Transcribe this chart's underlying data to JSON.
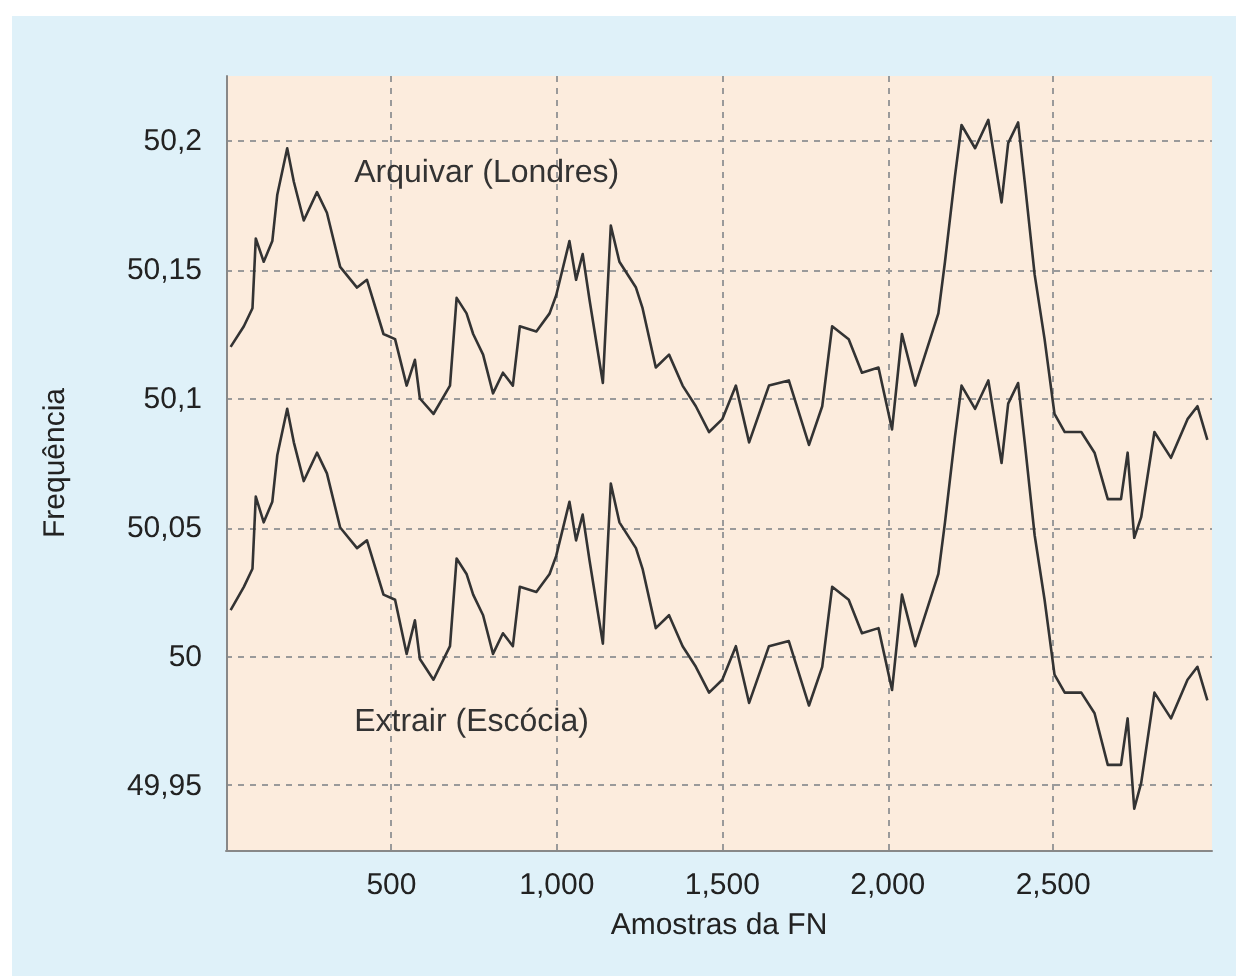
{
  "chart_data": {
    "type": "line",
    "xlabel": "Amostras da FN",
    "ylabel": "Frequência",
    "grid": true,
    "xlim": [
      0,
      2980
    ],
    "ylim": [
      49.925,
      50.225
    ],
    "xticks": [
      500,
      {
        "value": 1000,
        "label": "1,000"
      },
      {
        "value": 1500,
        "label": "1,500"
      },
      {
        "value": 2000,
        "label": "2,000"
      },
      {
        "value": 2500,
        "label": "2,500"
      }
    ],
    "yticks": [
      {
        "value": 49.95,
        "label": "49,95"
      },
      50,
      {
        "value": 50.05,
        "label": "50,05"
      },
      {
        "value": 50.1,
        "label": "50,1"
      },
      {
        "value": 50.15,
        "label": "50,15"
      },
      {
        "value": 50.2,
        "label": "50,2"
      }
    ],
    "x": [
      14,
      54,
      80,
      90,
      114,
      140,
      155,
      185,
      205,
      235,
      275,
      305,
      345,
      396,
      426,
      476,
      511,
      546,
      571,
      586,
      627,
      677,
      697,
      727,
      747,
      777,
      807,
      837,
      867,
      888,
      938,
      978,
      998,
      1038,
      1058,
      1078,
      1099,
      1139,
      1163,
      1189,
      1239,
      1259,
      1299,
      1339,
      1380,
      1420,
      1460,
      1500,
      1541,
      1581,
      1641,
      1701,
      1762,
      1802,
      1832,
      1882,
      1922,
      1972,
      2013,
      2043,
      2083,
      2113,
      2153,
      2173,
      2203,
      2223,
      2264,
      2304,
      2344,
      2364,
      2394,
      2414,
      2444,
      2474,
      2504,
      2535,
      2585,
      2625,
      2665,
      2705,
      2725,
      2745,
      2766,
      2806,
      2856,
      2906,
      2936,
      2966
    ],
    "series": [
      {
        "name": "Arquivar (Londres)",
        "color": "#333333",
        "values": [
          50.12,
          50.128,
          50.135,
          50.162,
          50.153,
          50.161,
          50.179,
          50.197,
          50.184,
          50.169,
          50.18,
          50.172,
          50.151,
          50.143,
          50.146,
          50.125,
          50.123,
          50.105,
          50.115,
          50.1,
          50.094,
          50.105,
          50.139,
          50.133,
          50.125,
          50.117,
          50.102,
          50.11,
          50.105,
          50.128,
          50.126,
          50.133,
          50.14,
          50.161,
          50.146,
          50.156,
          50.138,
          50.106,
          50.167,
          50.153,
          50.143,
          50.135,
          50.112,
          50.117,
          50.105,
          50.097,
          50.087,
          50.092,
          50.105,
          50.083,
          50.105,
          50.107,
          50.082,
          50.097,
          50.128,
          50.123,
          50.11,
          50.112,
          50.088,
          50.125,
          50.105,
          50.117,
          50.133,
          50.153,
          50.186,
          50.206,
          50.197,
          50.208,
          50.176,
          50.199,
          50.207,
          50.184,
          50.148,
          50.123,
          50.094,
          50.087,
          50.087,
          50.079,
          50.061,
          50.061,
          50.079,
          50.046,
          50.054,
          50.087,
          50.077,
          50.092,
          50.097,
          50.084
        ]
      },
      {
        "name": "Extrair (Escócia)",
        "color": "#333333",
        "values": [
          50.018,
          50.027,
          50.034,
          50.062,
          50.052,
          50.06,
          50.078,
          50.096,
          50.083,
          50.068,
          50.079,
          50.071,
          50.05,
          50.042,
          50.045,
          50.024,
          50.022,
          50.001,
          50.014,
          49.999,
          49.991,
          50.004,
          50.038,
          50.032,
          50.024,
          50.016,
          50.001,
          50.009,
          50.004,
          50.027,
          50.025,
          50.032,
          50.039,
          50.06,
          50.045,
          50.055,
          50.037,
          50.005,
          50.067,
          50.052,
          50.042,
          50.034,
          50.011,
          50.016,
          50.004,
          49.996,
          49.986,
          49.991,
          50.004,
          49.982,
          50.004,
          50.006,
          49.981,
          49.996,
          50.027,
          50.022,
          50.009,
          50.011,
          49.987,
          50.024,
          50.004,
          50.016,
          50.032,
          50.052,
          50.085,
          50.105,
          50.096,
          50.107,
          50.075,
          50.098,
          50.106,
          50.083,
          50.047,
          50.022,
          49.993,
          49.986,
          49.986,
          49.978,
          49.958,
          49.958,
          49.976,
          49.941,
          49.951,
          49.986,
          49.976,
          49.991,
          49.996,
          49.983
        ]
      }
    ]
  }
}
